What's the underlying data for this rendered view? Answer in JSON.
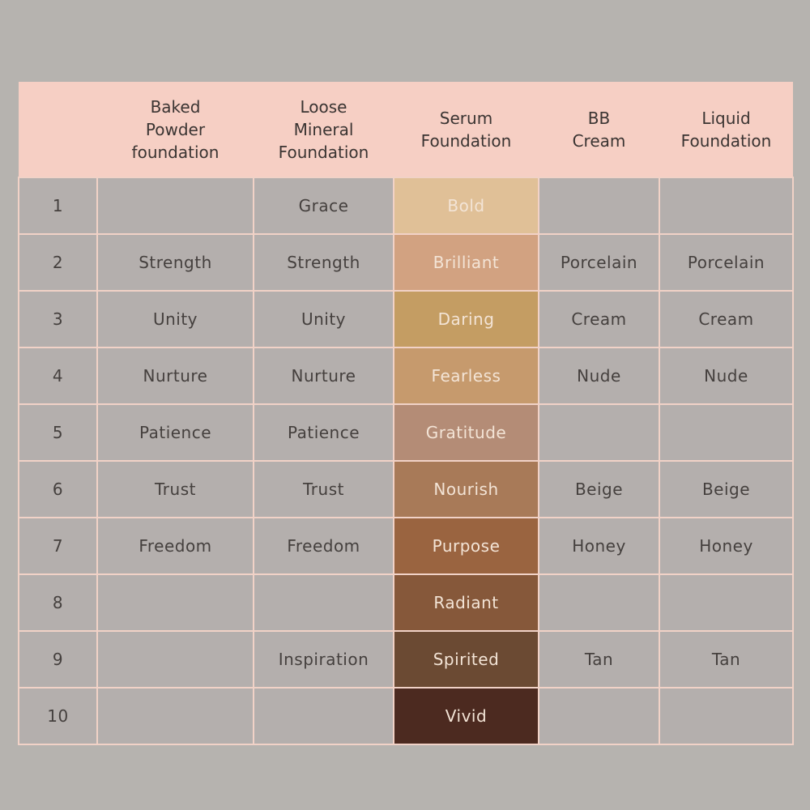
{
  "table": {
    "headers": [
      "",
      "Baked\nPowder\nfoundation",
      "Loose\nMineral\nFoundation",
      "Serum\nFoundation",
      "BB\nCream",
      "Liquid\nFoundation"
    ],
    "rows": [
      {
        "num": "1",
        "baked": "",
        "loose": "Grace",
        "serum": "Bold",
        "serum_color": "#e0c097",
        "bb": "",
        "liquid": ""
      },
      {
        "num": "2",
        "baked": "Strength",
        "loose": "Strength",
        "serum": "Brilliant",
        "serum_color": "#d2a281",
        "bb": "Porcelain",
        "liquid": "Porcelain"
      },
      {
        "num": "3",
        "baked": "Unity",
        "loose": "Unity",
        "serum": "Daring",
        "serum_color": "#c49d63",
        "bb": "Cream",
        "liquid": "Cream"
      },
      {
        "num": "4",
        "baked": "Nurture",
        "loose": "Nurture",
        "serum": "Fearless",
        "serum_color": "#c69a6d",
        "bb": "Nude",
        "liquid": "Nude"
      },
      {
        "num": "5",
        "baked": "Patience",
        "loose": "Patience",
        "serum": "Gratitude",
        "serum_color": "#b48c76",
        "bb": "",
        "liquid": ""
      },
      {
        "num": "6",
        "baked": "Trust",
        "loose": "Trust",
        "serum": "Nourish",
        "serum_color": "#a87a58",
        "bb": "Beige",
        "liquid": "Beige"
      },
      {
        "num": "7",
        "baked": "Freedom",
        "loose": "Freedom",
        "serum": "Purpose",
        "serum_color": "#9a6440",
        "bb": "Honey",
        "liquid": "Honey"
      },
      {
        "num": "8",
        "baked": "",
        "loose": "",
        "serum": "Radiant",
        "serum_color": "#86583a",
        "bb": "",
        "liquid": ""
      },
      {
        "num": "9",
        "baked": "",
        "loose": "Inspiration",
        "serum": "Spirited",
        "serum_color": "#6b4a33",
        "bb": "Tan",
        "liquid": "Tan"
      },
      {
        "num": "10",
        "baked": "",
        "loose": "",
        "serum": "Vivid",
        "serum_color": "#4c2a20",
        "bb": "",
        "liquid": ""
      }
    ]
  }
}
